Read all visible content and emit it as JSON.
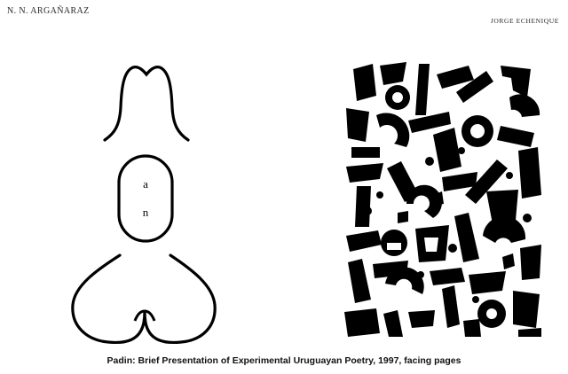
{
  "header": {
    "left_author": "N. N. ARGAÑARAZ",
    "right_author": "JORGE ECHENIQUE"
  },
  "left_poem": {
    "letter_top": "a",
    "letter_bottom": "n"
  },
  "caption": "Padin: Brief Presentation of Experimental Uruguayan Poetry, 1997, facing pages",
  "colors": {
    "ink": "#000000",
    "paper": "#ffffff"
  }
}
